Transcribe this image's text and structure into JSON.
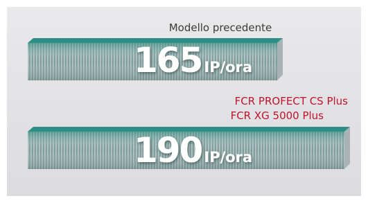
{
  "items": [
    {
      "label": "Modello precedente",
      "value": 165,
      "unit": "IP/ora"
    },
    {
      "labels": [
        "FCR PROFECT CS Plus",
        "FCR XG 5000 Plus"
      ],
      "value": 190,
      "unit": "IP/ora"
    }
  ]
}
